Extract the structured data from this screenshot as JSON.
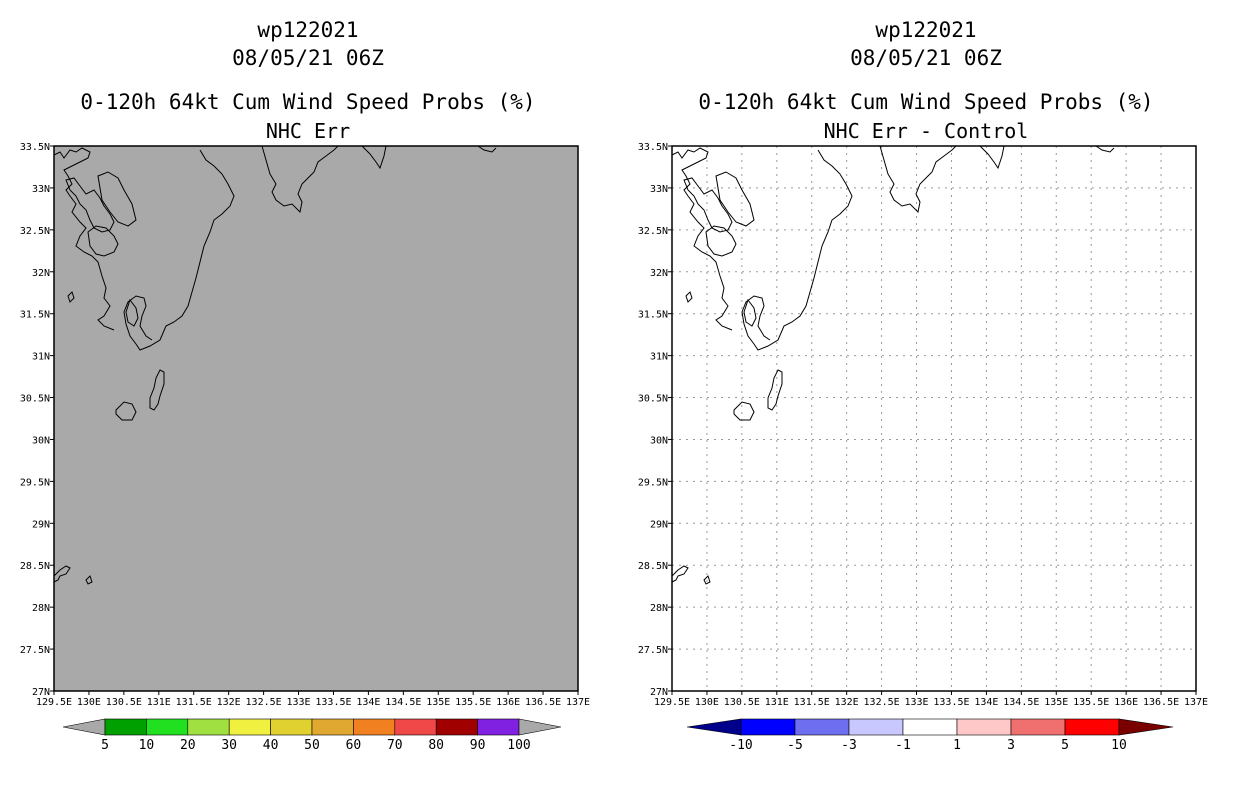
{
  "panels": [
    {
      "id": "left",
      "title_storm": "wp122021",
      "title_time": "08/05/21 06Z",
      "title_product": "0-120h 64kt Cum Wind Speed Probs (%)",
      "title_sub": "NHC Err",
      "fill_color": "#a9a9a9",
      "show_grid": false,
      "colorbar": {
        "under_color": "#a9a9a9",
        "over_color": "#a9a9a9",
        "colors": [
          "#00a000",
          "#20e020",
          "#a0e040",
          "#f0f040",
          "#e0d030",
          "#e0a830",
          "#f08020",
          "#f04848",
          "#a00000",
          "#8020e0"
        ],
        "labels": [
          "5",
          "10",
          "20",
          "30",
          "40",
          "50",
          "60",
          "70",
          "80",
          "90",
          "100"
        ]
      }
    },
    {
      "id": "right",
      "title_storm": "wp122021",
      "title_time": "08/05/21 06Z",
      "title_product": "0-120h 64kt Cum Wind Speed Probs (%)",
      "title_sub": "NHC Err - Control",
      "fill_color": "#ffffff",
      "show_grid": true,
      "colorbar": {
        "under_color": "#00008b",
        "over_color": "#7a0000",
        "colors": [
          "#0000ff",
          "#6e6ef0",
          "#c8c8ff",
          "#ffffff",
          "#ffc8c8",
          "#f07070",
          "#ff0000"
        ],
        "labels": [
          "-10",
          "-5",
          "-3",
          "-1",
          "1",
          "3",
          "5",
          "10"
        ]
      }
    }
  ],
  "axes": {
    "lon_labels": [
      "129.5E",
      "130E",
      "130.5E",
      "131E",
      "131.5E",
      "132E",
      "132.5E",
      "133E",
      "133.5E",
      "134E",
      "134.5E",
      "135E",
      "135.5E",
      "136E",
      "136.5E",
      "137E"
    ],
    "lat_labels": [
      "27N",
      "27.5N",
      "28N",
      "28.5N",
      "29N",
      "29.5N",
      "30N",
      "30.5N",
      "31N",
      "31.5N",
      "32N",
      "32.5N",
      "33N",
      "33.5N"
    ],
    "lon_range": [
      129.5,
      137.0
    ],
    "lat_range": [
      27.0,
      33.5
    ]
  }
}
